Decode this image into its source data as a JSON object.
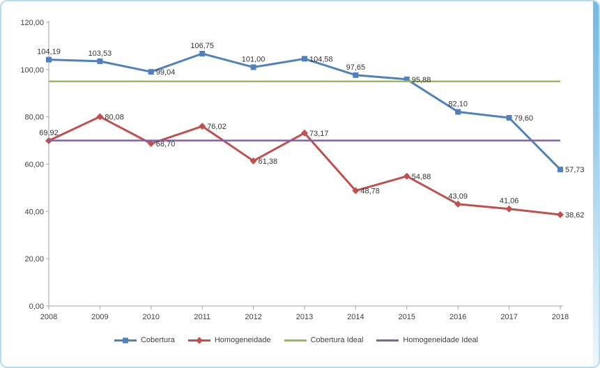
{
  "window": {
    "frame_border_color": "#b5dcf2",
    "frame_gradient_top_color": "#74b9e2",
    "background_color": "#ffffff"
  },
  "chart_data": {
    "type": "line",
    "title": "",
    "xlabel": "",
    "ylabel": "",
    "grid": false,
    "legend_position": "bottom",
    "axis_color": "#a3a3a3",
    "axis_text_color": "#3f3f3f",
    "data_label_color": "#333333",
    "categories": [
      "2008",
      "2009",
      "2010",
      "2011",
      "2012",
      "2013",
      "2014",
      "2015",
      "2016",
      "2017",
      "2018"
    ],
    "y_axis": {
      "min": 0,
      "max": 120,
      "step": 20,
      "tick_labels": [
        "0,00",
        "20,00",
        "40,00",
        "60,00",
        "80,00",
        "100,00",
        "120,00"
      ]
    },
    "series": [
      {
        "name": "Cobertura",
        "color": "#4F81BD",
        "marker": "square",
        "values": [
          104.19,
          103.53,
          99.04,
          106.75,
          101.0,
          104.58,
          97.65,
          95.88,
          82.1,
          79.6,
          57.73
        ],
        "data_labels": [
          "104,19",
          "103,53",
          "99,04",
          "106,75",
          "101,00",
          "104,58",
          "97,65",
          "95,88",
          "82,10",
          "79,60",
          "57,73"
        ],
        "label_positions": [
          "above",
          "above",
          "right",
          "above",
          "above",
          "right",
          "above",
          "right",
          "above",
          "right",
          "right"
        ]
      },
      {
        "name": "Homogeneidade",
        "color": "#C0504D",
        "marker": "diamond",
        "values": [
          69.92,
          80.08,
          68.7,
          76.02,
          61.38,
          73.17,
          48.78,
          54.88,
          43.09,
          41.06,
          38.62
        ],
        "data_labels": [
          "69,92",
          "80,08",
          "68,70",
          "76,02",
          "61,38",
          "73,17",
          "48,78",
          "54,88",
          "43,09",
          "41,06",
          "38,62"
        ],
        "label_positions": [
          "above",
          "right",
          "right",
          "right",
          "right",
          "right",
          "right",
          "right",
          "above",
          "above",
          "right"
        ]
      },
      {
        "name": "Cobertura Ideal",
        "color": "#9BBB59",
        "marker": "none",
        "constant_value": 95
      },
      {
        "name": "Homogeneidade Ideal",
        "color": "#8064A2",
        "marker": "none",
        "constant_value": 70
      }
    ]
  }
}
